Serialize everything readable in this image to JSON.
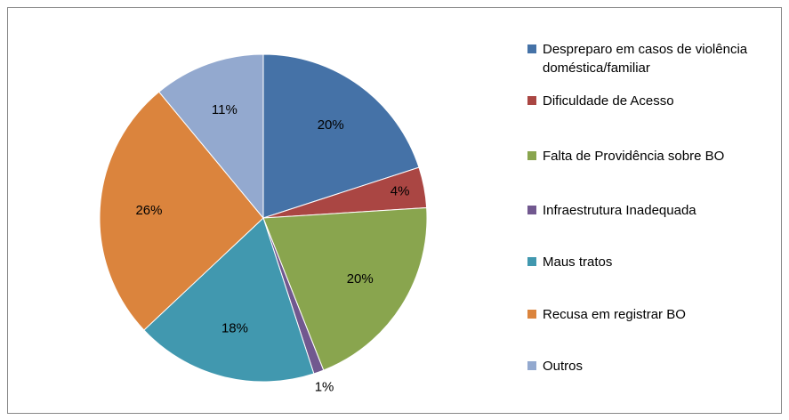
{
  "chart_data": {
    "type": "pie",
    "categories": [
      "Despreparo em casos de violência doméstica/familiar",
      "Dificuldade de Acesso",
      "Falta de Providência sobre BO",
      "Infraestrutura Inadequada",
      "Maus tratos",
      "Recusa em registrar BO",
      "Outros"
    ],
    "values": [
      20,
      4,
      20,
      1,
      18,
      26,
      11
    ],
    "value_labels": [
      "20%",
      "4%",
      "20%",
      "1%",
      "18%",
      "26%",
      "11%"
    ],
    "colors": [
      "#4572a7",
      "#aa4643",
      "#89a54e",
      "#71588f",
      "#4198af",
      "#db843d",
      "#93a9cf"
    ],
    "legend": "right"
  }
}
